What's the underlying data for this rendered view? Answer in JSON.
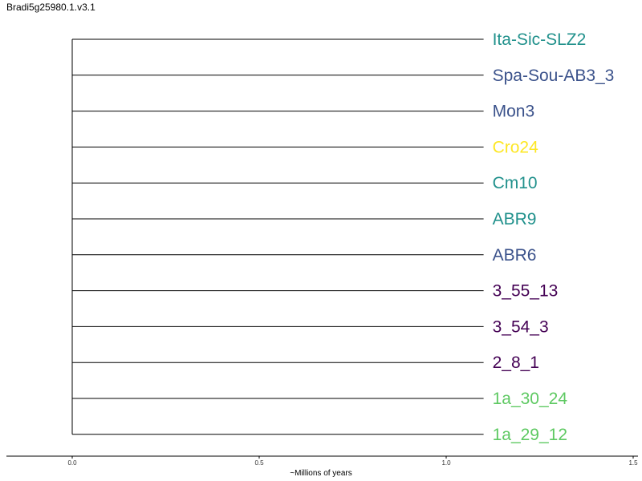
{
  "chart_data": {
    "type": "tree",
    "title": "Bradi5g25980.1.v3.1",
    "xlabel": "~Millions of years",
    "xlim": [
      0.0,
      1.5
    ],
    "xticks": [
      "0.0",
      "0.5",
      "1.0",
      "1.5"
    ],
    "tip_branch_length": 1.1,
    "tips": [
      {
        "label": "Ita-Sic-SLZ2",
        "color": "#21918c"
      },
      {
        "label": "Spa-Sou-AB3_3",
        "color": "#3b528b"
      },
      {
        "label": "Mon3",
        "color": "#3b528b"
      },
      {
        "label": "Cro24",
        "color": "#fde725"
      },
      {
        "label": "Cm10",
        "color": "#21918c"
      },
      {
        "label": "ABR9",
        "color": "#21918c"
      },
      {
        "label": "ABR6",
        "color": "#3b528b"
      },
      {
        "label": "3_55_13",
        "color": "#440154"
      },
      {
        "label": "3_54_3",
        "color": "#440154"
      },
      {
        "label": "2_8_1",
        "color": "#440154"
      },
      {
        "label": "1a_30_24",
        "color": "#5ec962"
      },
      {
        "label": "1a_29_12",
        "color": "#5ec962"
      }
    ]
  }
}
